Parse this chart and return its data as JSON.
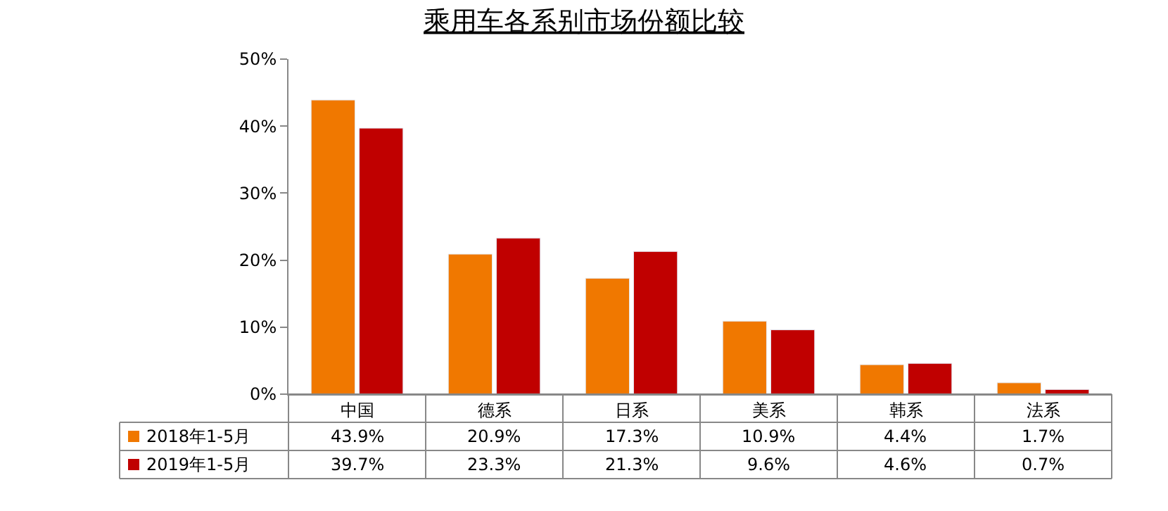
{
  "chart_data": {
    "type": "bar",
    "title": "乘用车各系别市场份额比较",
    "categories": [
      "中国",
      "德系",
      "日系",
      "美系",
      "韩系",
      "法系"
    ],
    "series": [
      {
        "name": "2018年1-5月",
        "color": "#f07800",
        "values": [
          43.9,
          20.9,
          17.3,
          10.9,
          4.4,
          1.7
        ],
        "value_labels": [
          "43.9%",
          "20.9%",
          "17.3%",
          "10.9%",
          "4.4%",
          "1.7%"
        ]
      },
      {
        "name": "2019年1-5月",
        "color": "#c00000",
        "values": [
          39.7,
          23.3,
          21.3,
          9.6,
          4.6,
          0.7
        ],
        "value_labels": [
          "39.7%",
          "23.3%",
          "21.3%",
          "9.6%",
          "4.6%",
          "0.7%"
        ]
      }
    ],
    "ylim": [
      0,
      50
    ],
    "yticks": [
      {
        "value": 0,
        "label": "0%"
      },
      {
        "value": 10,
        "label": "10%"
      },
      {
        "value": 20,
        "label": "20%"
      },
      {
        "value": 30,
        "label": "30%"
      },
      {
        "value": 40,
        "label": "40%"
      },
      {
        "value": 50,
        "label": "50%"
      }
    ],
    "legend": "bottom left"
  }
}
